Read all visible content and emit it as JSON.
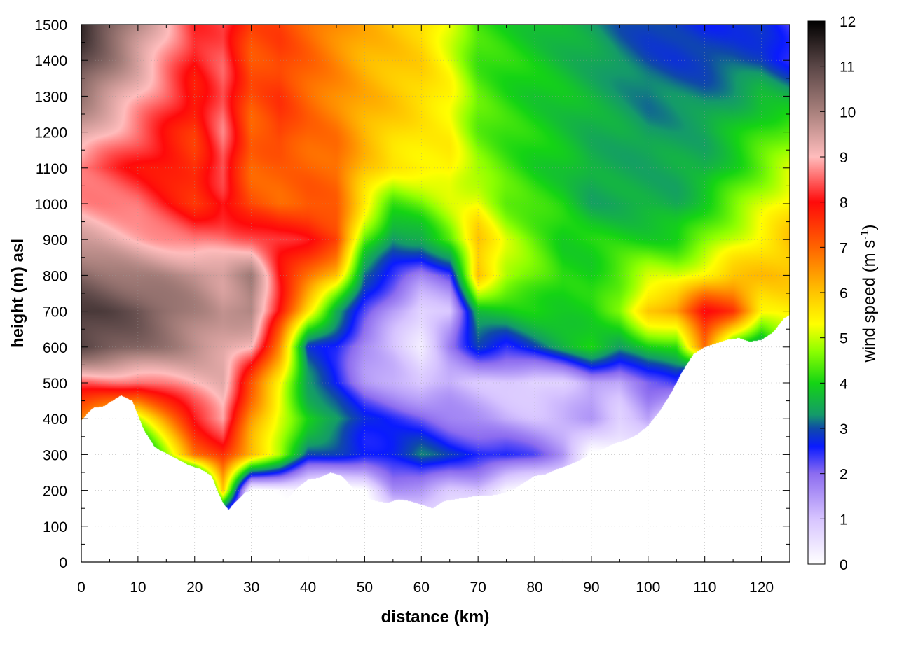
{
  "chart_data": {
    "type": "heatmap",
    "title": "",
    "xlabel": "distance (km)",
    "ylabel": "height (m) asl",
    "xlim": [
      0,
      125
    ],
    "ylim": [
      0,
      1500
    ],
    "xticks": [
      "0",
      "10",
      "20",
      "30",
      "40",
      "50",
      "60",
      "70",
      "80",
      "90",
      "100",
      "110",
      "120"
    ],
    "yticks": [
      "0",
      "100",
      "200",
      "300",
      "400",
      "500",
      "600",
      "700",
      "800",
      "900",
      "1000",
      "1100",
      "1200",
      "1300",
      "1400",
      "1500"
    ],
    "grid": true,
    "colorbar": {
      "label": "wind speed (m s-1)",
      "label_parts": [
        "wind speed (m s",
        "-1",
        ")"
      ],
      "range": [
        0,
        12
      ],
      "ticks": [
        "0",
        "1",
        "2",
        "3",
        "4",
        "5",
        "6",
        "7",
        "8",
        "9",
        "10",
        "11",
        "12"
      ],
      "colors": [
        {
          "v": 0,
          "c": "#ffffff"
        },
        {
          "v": 1,
          "c": "#d7c4ff"
        },
        {
          "v": 2,
          "c": "#8c6cf0"
        },
        {
          "v": 2.6,
          "c": "#0a1bff"
        },
        {
          "v": 3,
          "c": "#0f4aa8"
        },
        {
          "v": 3.3,
          "c": "#149a6a"
        },
        {
          "v": 4,
          "c": "#14d414"
        },
        {
          "v": 4.7,
          "c": "#8cff00"
        },
        {
          "v": 5.3,
          "c": "#ffff00"
        },
        {
          "v": 6,
          "c": "#ffc400"
        },
        {
          "v": 7,
          "c": "#ff6400"
        },
        {
          "v": 8,
          "c": "#ff0a0a"
        },
        {
          "v": 9,
          "c": "#ffbcbc"
        },
        {
          "v": 10,
          "c": "#a8807c"
        },
        {
          "v": 11,
          "c": "#5a4646"
        },
        {
          "v": 12,
          "c": "#000000"
        }
      ]
    },
    "terrain_height_m": {
      "x_km": [
        0,
        2,
        4,
        6,
        7,
        9,
        11,
        13,
        16,
        19,
        21,
        23,
        24,
        25,
        26,
        27,
        29,
        31,
        33,
        35,
        36,
        38,
        40,
        42,
        44,
        46,
        48,
        50,
        52,
        54,
        56,
        58,
        60,
        62,
        64,
        66,
        68,
        70,
        72,
        74,
        76,
        78,
        80,
        82,
        84,
        86,
        88,
        90,
        92,
        94,
        96,
        98,
        100,
        102,
        104,
        106,
        108,
        110,
        112,
        114,
        116,
        118,
        120,
        122,
        124,
        125
      ],
      "z_m": [
        395,
        430,
        435,
        455,
        465,
        450,
        370,
        320,
        295,
        270,
        260,
        240,
        200,
        165,
        145,
        165,
        195,
        200,
        185,
        155,
        170,
        205,
        230,
        235,
        250,
        240,
        205,
        180,
        170,
        165,
        175,
        170,
        160,
        150,
        170,
        175,
        180,
        185,
        185,
        190,
        200,
        220,
        240,
        245,
        260,
        270,
        285,
        300,
        315,
        330,
        340,
        355,
        380,
        420,
        470,
        530,
        580,
        600,
        610,
        620,
        625,
        615,
        620,
        640,
        680,
        690
      ]
    },
    "wind_speed_field": {
      "x_km": [
        0,
        10,
        20,
        25,
        30,
        35,
        40,
        45,
        50,
        55,
        60,
        65,
        70,
        75,
        80,
        85,
        90,
        95,
        100,
        105,
        110,
        115,
        120,
        125
      ],
      "z_m": [
        100,
        200,
        300,
        400,
        500,
        600,
        700,
        800,
        900,
        1000,
        1100,
        1200,
        1300,
        1400,
        1500
      ],
      "values": [
        [
          0,
          0,
          0,
          0,
          0,
          0,
          0,
          0,
          0,
          0,
          0,
          0,
          0,
          0,
          0,
          0,
          0,
          0,
          0,
          0,
          0,
          0,
          0,
          0
        ],
        [
          0,
          0,
          0,
          6,
          0,
          0,
          0,
          0,
          0,
          1.5,
          1.5,
          1,
          1,
          0,
          0,
          0,
          0,
          0,
          0,
          0,
          0,
          0,
          0,
          0
        ],
        [
          0,
          2.5,
          7,
          7.5,
          6,
          5,
          3,
          2.8,
          2.6,
          2.8,
          3.2,
          2.8,
          2.6,
          2.6,
          2.2,
          1.5,
          0,
          0,
          0,
          0,
          0,
          0,
          0,
          0
        ],
        [
          6.5,
          5,
          8,
          9,
          6.5,
          5,
          4,
          3.5,
          2.7,
          2.4,
          2.2,
          1.8,
          1.5,
          1.2,
          1.1,
          1.2,
          1.4,
          0.8,
          1.5,
          0,
          0,
          0,
          0,
          0
        ],
        [
          8.5,
          8.5,
          9,
          9.2,
          7.2,
          5.5,
          3.3,
          2.5,
          1.6,
          1.3,
          0.8,
          1.2,
          1,
          0.9,
          0.6,
          0.8,
          1.5,
          1.2,
          2,
          2.5,
          0,
          0,
          0,
          0
        ],
        [
          11,
          10.5,
          9.8,
          9.5,
          9,
          6.5,
          2.9,
          2.6,
          1.5,
          1.0,
          0.4,
          1.8,
          2.8,
          2.5,
          3,
          3.5,
          4,
          3.5,
          4,
          4,
          7,
          4,
          3,
          5
        ],
        [
          11.2,
          10.8,
          10,
          9.6,
          10,
          8,
          5.5,
          3.5,
          2.4,
          1.4,
          0.6,
          1.0,
          3.8,
          3.8,
          4,
          4,
          4,
          4.5,
          6,
          6.5,
          8,
          7.5,
          5.5,
          5.5
        ],
        [
          10.5,
          10,
          9.8,
          9.5,
          10,
          8,
          7,
          6,
          3,
          2.5,
          1.8,
          2.2,
          6,
          5,
          4.5,
          4,
          4,
          4.5,
          5,
          5,
          5.5,
          6,
          6,
          6
        ],
        [
          9.5,
          9,
          8.5,
          8.6,
          8.5,
          8.2,
          8,
          7.5,
          4.5,
          3.2,
          3.5,
          4.5,
          6,
          5,
          4.5,
          4,
          4,
          4,
          4,
          4,
          4.5,
          5,
          5.5,
          6
        ],
        [
          8.8,
          8.5,
          7.6,
          8,
          7.2,
          7,
          7.2,
          7,
          5.5,
          4.3,
          4.5,
          5,
          5.3,
          4.5,
          4.2,
          4,
          3.5,
          3.5,
          3.5,
          3.5,
          4,
          4.5,
          5,
          5.5
        ],
        [
          8.5,
          8,
          7.5,
          8.5,
          7,
          7,
          7,
          7,
          6,
          5.5,
          5.5,
          5.5,
          4.7,
          4.3,
          4,
          3.8,
          3.5,
          3.5,
          3.5,
          3.5,
          3.5,
          4,
          4.5,
          5
        ],
        [
          9.5,
          8.5,
          7.5,
          8.6,
          7,
          7.5,
          7,
          6.8,
          6.2,
          5.8,
          5.5,
          5.4,
          4.5,
          4.2,
          4,
          3.8,
          3.6,
          3.5,
          3.3,
          3.4,
          3.5,
          3.8,
          4.2,
          4.5
        ],
        [
          10.2,
          9,
          7.8,
          8.5,
          7.2,
          7.5,
          7,
          6.6,
          6.2,
          6,
          5.8,
          5.4,
          4.4,
          4.1,
          3.9,
          3.8,
          3.6,
          3.4,
          3.2,
          3.2,
          3.2,
          3.4,
          3.7,
          3.5
        ],
        [
          11,
          9.5,
          8,
          8.4,
          7.2,
          7.4,
          7,
          6.6,
          6.2,
          6,
          5.8,
          5.2,
          4.3,
          4.1,
          3.9,
          3.7,
          3.5,
          3.2,
          3.0,
          2.9,
          2.9,
          3.0,
          3.0,
          2.5
        ],
        [
          11.5,
          9.8,
          8.2,
          8.4,
          7.3,
          7.4,
          7,
          6.6,
          6.2,
          6,
          5.8,
          5.1,
          4.2,
          4.0,
          3.8,
          3.6,
          3.4,
          3.1,
          2.9,
          2.8,
          2.7,
          2.8,
          2.7,
          2.3
        ]
      ]
    }
  }
}
